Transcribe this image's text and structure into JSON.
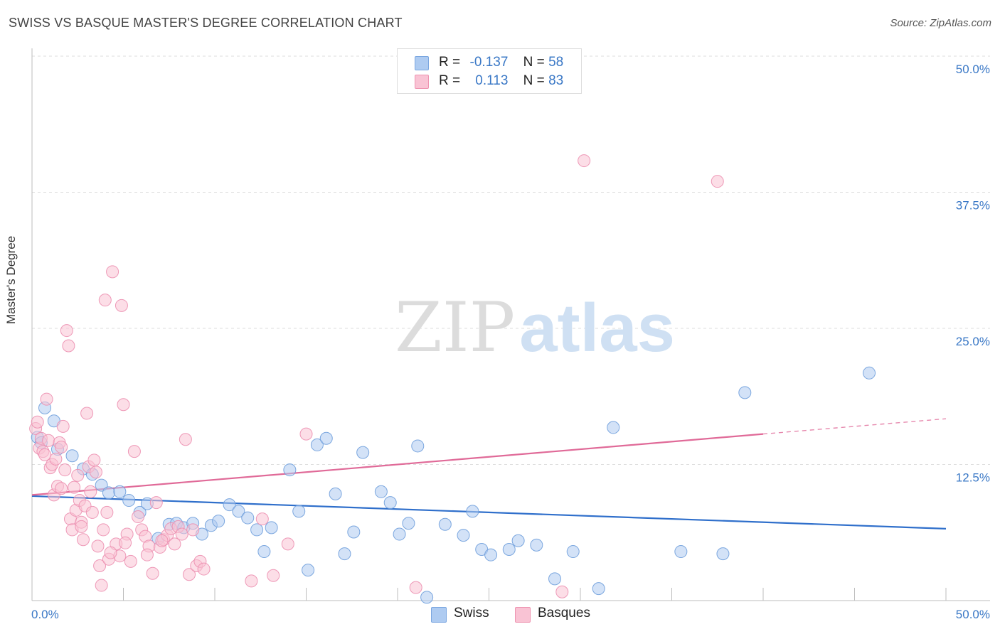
{
  "title": "SWISS VS BASQUE MASTER'S DEGREE CORRELATION CHART",
  "source": "Source: ZipAtlas.com",
  "watermark": {
    "part1": "ZIP",
    "part2": "atlas"
  },
  "legend": {
    "rows": [
      {
        "r_label": "R =",
        "r_value": "-0.137",
        "n_label": "N =",
        "n_value": "58",
        "color": "#aecbf1",
        "border": "#7aa6e0"
      },
      {
        "r_label": "R =",
        "r_value": "0.113",
        "n_label": "N =",
        "n_value": "83",
        "color": "#f9c3d4",
        "border": "#ee93b0"
      }
    ]
  },
  "bottom_legend": [
    {
      "label": "Swiss",
      "color": "#aecbf1",
      "border": "#7aa6e0"
    },
    {
      "label": "Basques",
      "color": "#f9c3d4",
      "border": "#ee93b0"
    }
  ],
  "chart_data": {
    "type": "scatter",
    "title": "SWISS VS BASQUE MASTER'S DEGREE CORRELATION CHART",
    "xlabel": "",
    "ylabel": "Master's Degree",
    "xlim": [
      0,
      50
    ],
    "ylim": [
      0,
      50
    ],
    "x_tick_labels": [
      "0.0%",
      "50.0%"
    ],
    "y_ticks": [
      12.5,
      25.0,
      37.5,
      50.0
    ],
    "y_tick_labels": [
      "12.5%",
      "25.0%",
      "37.5%",
      "50.0%"
    ],
    "grid": true,
    "legend_position": "top-center",
    "series": [
      {
        "name": "Swiss",
        "color": "#6f9fdc",
        "fill": "#aecbf1",
        "trend": {
          "x0": 0,
          "y0": 9.6,
          "x1": 50,
          "y1": 6.6,
          "color": "#2f6fcb"
        },
        "points": [
          [
            0.3,
            15.0
          ],
          [
            0.5,
            14.5
          ],
          [
            0.7,
            17.7
          ],
          [
            1.2,
            16.5
          ],
          [
            1.4,
            13.9
          ],
          [
            2.2,
            13.3
          ],
          [
            2.8,
            12.1
          ],
          [
            3.3,
            11.6
          ],
          [
            3.8,
            10.6
          ],
          [
            4.2,
            9.9
          ],
          [
            4.8,
            10.0
          ],
          [
            5.3,
            9.2
          ],
          [
            5.9,
            8.1
          ],
          [
            6.3,
            8.9
          ],
          [
            6.9,
            5.7
          ],
          [
            7.5,
            7.0
          ],
          [
            7.9,
            7.1
          ],
          [
            8.3,
            6.7
          ],
          [
            8.8,
            7.1
          ],
          [
            9.3,
            6.1
          ],
          [
            9.8,
            6.9
          ],
          [
            10.2,
            7.3
          ],
          [
            10.8,
            8.8
          ],
          [
            11.3,
            8.2
          ],
          [
            11.8,
            7.6
          ],
          [
            12.3,
            6.5
          ],
          [
            12.7,
            4.5
          ],
          [
            13.1,
            6.7
          ],
          [
            14.1,
            12.0
          ],
          [
            14.6,
            8.2
          ],
          [
            15.1,
            2.8
          ],
          [
            15.6,
            14.3
          ],
          [
            16.1,
            14.9
          ],
          [
            16.6,
            9.8
          ],
          [
            17.1,
            4.3
          ],
          [
            17.6,
            6.3
          ],
          [
            18.1,
            13.6
          ],
          [
            19.1,
            10.0
          ],
          [
            19.6,
            9.0
          ],
          [
            20.1,
            6.1
          ],
          [
            20.6,
            7.1
          ],
          [
            21.1,
            14.2
          ],
          [
            21.6,
            0.3
          ],
          [
            22.6,
            7.0
          ],
          [
            23.6,
            6.0
          ],
          [
            24.1,
            8.2
          ],
          [
            24.6,
            4.7
          ],
          [
            25.1,
            4.2
          ],
          [
            26.1,
            4.7
          ],
          [
            26.6,
            5.5
          ],
          [
            27.6,
            5.1
          ],
          [
            28.6,
            2.0
          ],
          [
            29.6,
            4.5
          ],
          [
            31.0,
            1.1
          ],
          [
            31.8,
            15.9
          ],
          [
            35.5,
            4.5
          ],
          [
            37.8,
            4.3
          ],
          [
            39.0,
            19.1
          ],
          [
            45.8,
            20.9
          ]
        ]
      },
      {
        "name": "Basques",
        "color": "#ec8fb0",
        "fill": "#f9c3d4",
        "trend": {
          "x0": 0,
          "y0": 9.7,
          "x1": 40,
          "y1": 15.3,
          "color": "#e06a98",
          "dash_x1": 50,
          "dash_y1": 16.7
        },
        "points": [
          [
            0.2,
            15.8
          ],
          [
            0.3,
            16.4
          ],
          [
            0.4,
            14.0
          ],
          [
            0.5,
            14.9
          ],
          [
            0.6,
            13.7
          ],
          [
            0.7,
            13.4
          ],
          [
            0.8,
            18.5
          ],
          [
            0.9,
            14.7
          ],
          [
            1.0,
            12.2
          ],
          [
            1.1,
            12.5
          ],
          [
            1.2,
            9.7
          ],
          [
            1.3,
            13.0
          ],
          [
            1.4,
            10.5
          ],
          [
            1.5,
            14.5
          ],
          [
            1.6,
            14.1
          ],
          [
            1.7,
            16.0
          ],
          [
            1.8,
            12.0
          ],
          [
            1.9,
            24.8
          ],
          [
            2.0,
            23.4
          ],
          [
            2.1,
            7.5
          ],
          [
            2.2,
            6.5
          ],
          [
            2.3,
            10.4
          ],
          [
            2.4,
            8.3
          ],
          [
            2.5,
            11.5
          ],
          [
            2.6,
            9.2
          ],
          [
            2.7,
            7.2
          ],
          [
            2.8,
            5.6
          ],
          [
            2.9,
            8.7
          ],
          [
            3.0,
            17.2
          ],
          [
            3.1,
            12.3
          ],
          [
            3.2,
            10.0
          ],
          [
            3.3,
            8.1
          ],
          [
            3.4,
            12.9
          ],
          [
            3.5,
            11.8
          ],
          [
            3.6,
            5.0
          ],
          [
            3.7,
            3.2
          ],
          [
            3.8,
            1.4
          ],
          [
            3.9,
            6.5
          ],
          [
            4.0,
            27.6
          ],
          [
            4.1,
            8.1
          ],
          [
            4.2,
            3.8
          ],
          [
            4.4,
            30.2
          ],
          [
            4.6,
            5.2
          ],
          [
            4.8,
            4.1
          ],
          [
            4.9,
            27.1
          ],
          [
            5.0,
            18.0
          ],
          [
            5.2,
            6.1
          ],
          [
            5.4,
            3.6
          ],
          [
            5.6,
            13.7
          ],
          [
            5.8,
            7.7
          ],
          [
            6.0,
            6.5
          ],
          [
            6.2,
            5.9
          ],
          [
            6.4,
            5.0
          ],
          [
            6.6,
            2.5
          ],
          [
            6.8,
            9.0
          ],
          [
            7.0,
            4.9
          ],
          [
            7.2,
            5.6
          ],
          [
            7.4,
            6.0
          ],
          [
            7.6,
            6.6
          ],
          [
            7.8,
            5.2
          ],
          [
            8.0,
            6.8
          ],
          [
            8.2,
            6.1
          ],
          [
            8.4,
            14.8
          ],
          [
            8.6,
            2.4
          ],
          [
            8.8,
            6.5
          ],
          [
            9.0,
            3.2
          ],
          [
            9.2,
            3.6
          ],
          [
            9.4,
            2.9
          ],
          [
            12.0,
            1.8
          ],
          [
            12.6,
            7.5
          ],
          [
            13.2,
            2.3
          ],
          [
            14.0,
            5.2
          ],
          [
            15.0,
            15.3
          ],
          [
            21.0,
            1.2
          ],
          [
            29.0,
            0.8
          ],
          [
            30.2,
            40.4
          ],
          [
            37.5,
            38.5
          ],
          [
            4.3,
            4.4
          ],
          [
            5.1,
            5.3
          ],
          [
            6.3,
            4.2
          ],
          [
            7.1,
            5.5
          ],
          [
            1.6,
            10.3
          ],
          [
            2.7,
            6.8
          ]
        ]
      }
    ]
  }
}
